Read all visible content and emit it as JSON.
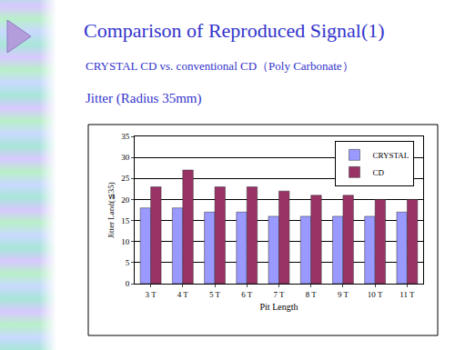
{
  "chart_data": {
    "type": "bar",
    "title": "Comparison of Reproduced Signal(1)",
    "subtitle": "CRYSTAL CD vs. conventional CD（Poly Carbonate）",
    "annotations": [
      "Jitter (Radius 35mm)"
    ],
    "x_label": "Pit Length",
    "y_label": "Jitter Land(≦35)",
    "categories": [
      "3 T",
      "4 T",
      "5 T",
      "6 T",
      "7 T",
      "8 T",
      "9 T",
      "10 T",
      "11 T"
    ],
    "series": [
      {
        "name": "CRYSTAL",
        "color": "#9999ff",
        "values": [
          18,
          18,
          17,
          17,
          16,
          16,
          16,
          16,
          17
        ]
      },
      {
        "name": "CD",
        "color": "#993366",
        "values": [
          23,
          27,
          23,
          23,
          22,
          21,
          21,
          20,
          20
        ]
      }
    ],
    "ylim": [
      0,
      35
    ],
    "yticks": [
      0,
      5,
      10,
      15,
      20,
      25,
      30,
      35
    ],
    "grid": true,
    "legend": "upper right",
    "data_labels": false
  }
}
